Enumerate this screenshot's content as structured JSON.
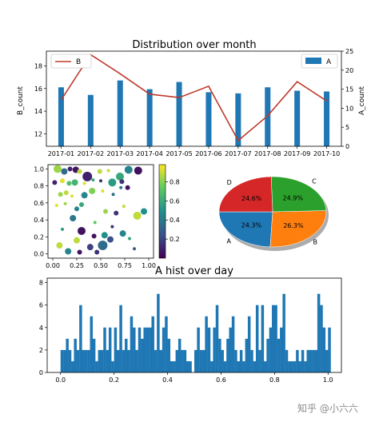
{
  "chart_data": [
    {
      "type": "bar+line",
      "title": "Distribution over month",
      "categories": [
        "2017-01",
        "2017-02",
        "2017-03",
        "2017-04",
        "2017-05",
        "2017-06",
        "2017-07",
        "2017-08",
        "2017-09",
        "2017-10"
      ],
      "series": [
        {
          "name": "A",
          "type": "bar",
          "axis": "right",
          "values": [
            15.5,
            13.5,
            17.3,
            15,
            16.9,
            14.2,
            13.9,
            15.5,
            14.6,
            14.4
          ],
          "color": "#1f77b4"
        },
        {
          "name": "B",
          "type": "line",
          "axis": "left",
          "values": [
            15,
            19,
            17.3,
            15.5,
            15.2,
            16.2,
            11.4,
            13.6,
            16.6,
            14.9
          ],
          "color": "#c0392b"
        }
      ],
      "ylabel": "B_count",
      "y2label": "A_count",
      "ylim": [
        10.9,
        19.3
      ],
      "y2lim": [
        0,
        25
      ],
      "yticks": [
        12,
        14,
        16,
        18
      ],
      "y2ticks": [
        0,
        5,
        10,
        15,
        20,
        25
      ],
      "legend": [
        "top-left: B",
        "top-right: A"
      ]
    },
    {
      "type": "scatter",
      "xlim": [
        -0.05,
        1.05
      ],
      "ylim": [
        -0.05,
        1.05
      ],
      "xticks": [
        "0.00",
        "0.25",
        "0.50",
        "0.75",
        "1.00"
      ],
      "yticks": [
        "0.0",
        "0.2",
        "0.4",
        "0.6",
        "0.8",
        "1.0"
      ],
      "colorbar_ticks": [
        "0.2",
        "0.4",
        "0.6",
        "0.8"
      ],
      "colormap": "viridis",
      "points": [
        {
          "x": 0.05,
          "y": 1.0,
          "c": 0.85,
          "s": 5
        },
        {
          "x": 0.12,
          "y": 0.97,
          "c": 0.35,
          "s": 4
        },
        {
          "x": 0.18,
          "y": 1.0,
          "c": 0.1,
          "s": 3
        },
        {
          "x": 0.24,
          "y": 0.99,
          "c": 0.05,
          "s": 4
        },
        {
          "x": 0.28,
          "y": 0.97,
          "c": 0.9,
          "s": 3
        },
        {
          "x": 0.36,
          "y": 0.91,
          "c": 0.1,
          "s": 6
        },
        {
          "x": 0.49,
          "y": 0.97,
          "c": 0.9,
          "s": 3
        },
        {
          "x": 0.58,
          "y": 0.98,
          "c": 0.92,
          "s": 2
        },
        {
          "x": 0.7,
          "y": 0.91,
          "c": 0.6,
          "s": 5
        },
        {
          "x": 0.79,
          "y": 0.99,
          "c": 0.45,
          "s": 5
        },
        {
          "x": 0.89,
          "y": 0.98,
          "c": 0.05,
          "s": 5
        },
        {
          "x": 0.02,
          "y": 0.84,
          "c": 0.1,
          "s": 3
        },
        {
          "x": 0.1,
          "y": 0.86,
          "c": 0.95,
          "s": 3
        },
        {
          "x": 0.17,
          "y": 0.83,
          "c": 0.7,
          "s": 3
        },
        {
          "x": 0.23,
          "y": 0.84,
          "c": 0.65,
          "s": 4
        },
        {
          "x": 0.33,
          "y": 0.83,
          "c": 0.95,
          "s": 2
        },
        {
          "x": 0.42,
          "y": 0.87,
          "c": 0.6,
          "s": 2
        },
        {
          "x": 0.5,
          "y": 0.86,
          "c": 0.15,
          "s": 2
        },
        {
          "x": 0.62,
          "y": 0.84,
          "c": 0.55,
          "s": 5
        },
        {
          "x": 0.72,
          "y": 0.85,
          "c": 0.15,
          "s": 3
        },
        {
          "x": 0.08,
          "y": 0.7,
          "c": 0.85,
          "s": 3
        },
        {
          "x": 0.14,
          "y": 0.72,
          "c": 0.9,
          "s": 3
        },
        {
          "x": 0.2,
          "y": 0.68,
          "c": 0.95,
          "s": 2
        },
        {
          "x": 0.33,
          "y": 0.69,
          "c": 0.45,
          "s": 4
        },
        {
          "x": 0.41,
          "y": 0.74,
          "c": 0.8,
          "s": 4
        },
        {
          "x": 0.52,
          "y": 0.74,
          "c": 0.95,
          "s": 2
        },
        {
          "x": 0.63,
          "y": 0.7,
          "c": 0.35,
          "s": 2
        },
        {
          "x": 0.71,
          "y": 0.78,
          "c": 0.4,
          "s": 2
        },
        {
          "x": 0.78,
          "y": 0.78,
          "c": 0.05,
          "s": 3
        },
        {
          "x": 0.04,
          "y": 0.57,
          "c": 0.95,
          "s": 2
        },
        {
          "x": 0.13,
          "y": 0.59,
          "c": 0.85,
          "s": 2
        },
        {
          "x": 0.25,
          "y": 0.53,
          "c": 0.45,
          "s": 3
        },
        {
          "x": 0.3,
          "y": 0.58,
          "c": 0.6,
          "s": 3
        },
        {
          "x": 0.55,
          "y": 0.5,
          "c": 0.85,
          "s": 3
        },
        {
          "x": 0.66,
          "y": 0.48,
          "c": 0.15,
          "s": 3
        },
        {
          "x": 0.74,
          "y": 0.56,
          "c": 0.9,
          "s": 2
        },
        {
          "x": 0.88,
          "y": 0.45,
          "c": 0.9,
          "s": 5
        },
        {
          "x": 0.95,
          "y": 0.5,
          "c": 0.5,
          "s": 4
        },
        {
          "x": 0.21,
          "y": 0.42,
          "c": 0.4,
          "s": 4
        },
        {
          "x": 0.44,
          "y": 0.37,
          "c": 0.75,
          "s": 2
        },
        {
          "x": 0.62,
          "y": 0.32,
          "c": 0.15,
          "s": 2
        },
        {
          "x": 0.1,
          "y": 0.29,
          "c": 0.55,
          "s": 2
        },
        {
          "x": 0.3,
          "y": 0.27,
          "c": 0.05,
          "s": 5
        },
        {
          "x": 0.54,
          "y": 0.22,
          "c": 0.5,
          "s": 4
        },
        {
          "x": 0.43,
          "y": 0.21,
          "c": 0.05,
          "s": 3
        },
        {
          "x": 0.73,
          "y": 0.24,
          "c": 0.45,
          "s": 4
        },
        {
          "x": 0.6,
          "y": 0.17,
          "c": 0.25,
          "s": 4
        },
        {
          "x": 0.25,
          "y": 0.16,
          "c": 0.9,
          "s": 4
        },
        {
          "x": 0.07,
          "y": 0.1,
          "c": 0.9,
          "s": 4
        },
        {
          "x": 0.39,
          "y": 0.08,
          "c": 0.2,
          "s": 4
        },
        {
          "x": 0.52,
          "y": 0.1,
          "c": 0.35,
          "s": 6
        },
        {
          "x": 0.16,
          "y": 0.03,
          "c": 0.45,
          "s": 4
        },
        {
          "x": 0.28,
          "y": 0.02,
          "c": 0.05,
          "s": 3
        },
        {
          "x": 0.8,
          "y": 0.18,
          "c": 0.6,
          "s": 2
        },
        {
          "x": 0.85,
          "y": 0.06,
          "c": 0.3,
          "s": 2
        },
        {
          "x": 0.46,
          "y": 0.02,
          "c": 0.15,
          "s": 3
        }
      ]
    },
    {
      "type": "pie",
      "slices": [
        {
          "label": "A",
          "value": 24.3,
          "text": "24.3%",
          "color": "#1f77b4"
        },
        {
          "label": "B",
          "value": 26.3,
          "text": "26.3%",
          "color": "#ff7f0e"
        },
        {
          "label": "C",
          "value": 24.9,
          "text": "24.9%",
          "color": "#2ca02c"
        },
        {
          "label": "D",
          "value": 24.6,
          "text": "24.6%",
          "color": "#d62728"
        }
      ]
    },
    {
      "type": "bar",
      "title": "A hist over day",
      "xlim": [
        -0.05,
        1.05
      ],
      "ylim": [
        0,
        8.4
      ],
      "xticks": [
        "0.0",
        "0.2",
        "0.4",
        "0.6",
        "0.8",
        "1.0"
      ],
      "yticks": [
        "0",
        "2",
        "4",
        "6",
        "8"
      ],
      "bin_width": 0.01,
      "values": [
        2,
        2,
        3,
        2,
        1,
        3,
        2,
        6,
        2,
        2,
        2,
        5,
        3,
        1,
        2,
        2,
        4,
        2,
        4,
        1,
        4,
        2,
        6,
        2,
        3,
        2,
        5,
        4,
        2,
        4,
        3,
        4,
        4,
        4,
        5,
        2,
        7,
        2,
        4,
        5,
        3,
        1,
        1,
        2,
        3,
        2,
        2,
        1,
        1,
        0,
        2,
        4,
        2,
        2,
        5,
        4,
        1,
        4,
        6,
        3,
        2,
        1,
        3,
        4,
        5,
        2,
        1,
        2,
        1,
        3,
        5,
        2,
        1,
        6,
        2,
        6,
        1,
        3,
        4,
        6,
        6,
        3,
        4,
        7,
        2,
        1,
        1,
        1,
        2,
        1,
        2,
        1,
        2,
        2,
        2,
        2,
        7,
        6,
        4,
        2,
        4
      ]
    }
  ],
  "watermark": "知乎 @小六六"
}
